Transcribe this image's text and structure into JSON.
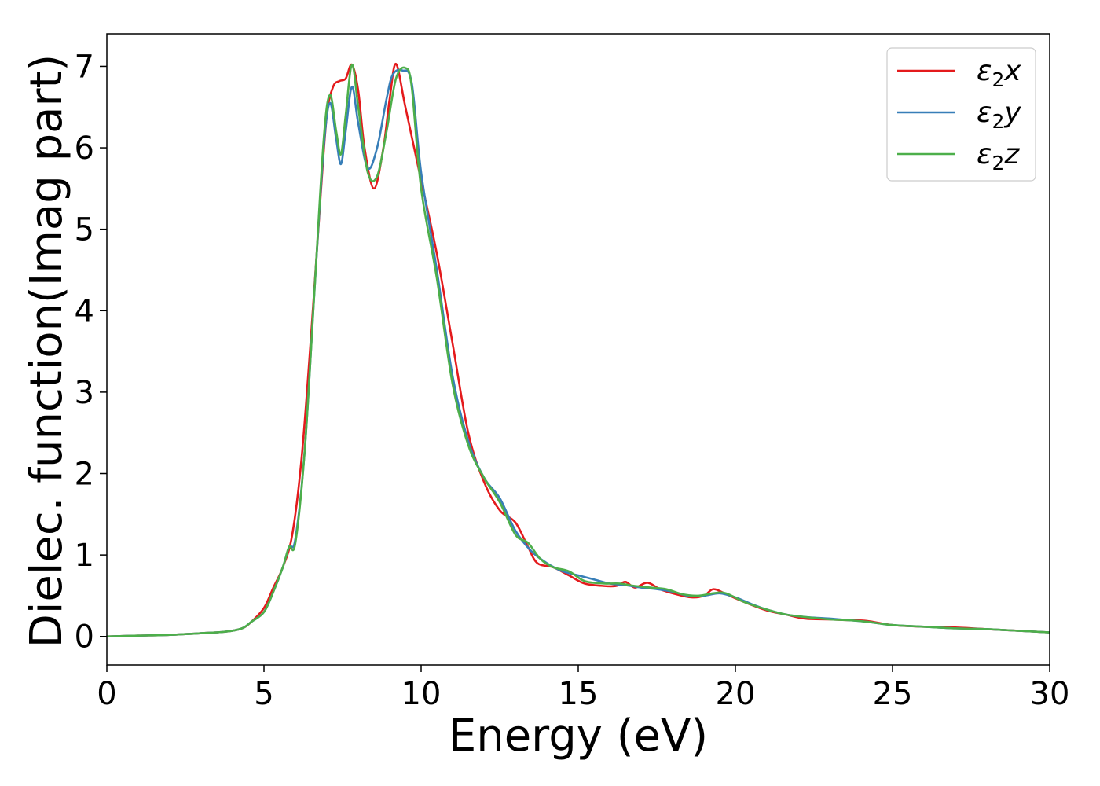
{
  "chart_data": {
    "type": "line",
    "title": "",
    "xlabel": "Energy (eV)",
    "ylabel": "Dielec. function(Imag part)",
    "xlim": [
      0,
      30
    ],
    "ylim": [
      -0.35,
      7.4
    ],
    "xticks": [
      0,
      5,
      10,
      15,
      20,
      25,
      30
    ],
    "yticks": [
      0,
      1,
      2,
      3,
      4,
      5,
      6,
      7
    ],
    "grid": false,
    "legend_position": "top-right",
    "series": [
      {
        "name": "ε2x",
        "legend_main": "ε",
        "legend_sub": "2",
        "legend_suffix": "x",
        "color": "#e41a1c",
        "points": [
          [
            0,
            0
          ],
          [
            1,
            0.01
          ],
          [
            2,
            0.02
          ],
          [
            3,
            0.04
          ],
          [
            3.8,
            0.06
          ],
          [
            4.3,
            0.1
          ],
          [
            4.6,
            0.18
          ],
          [
            5.0,
            0.35
          ],
          [
            5.3,
            0.6
          ],
          [
            5.6,
            0.85
          ],
          [
            5.9,
            1.25
          ],
          [
            6.2,
            2.2
          ],
          [
            6.5,
            3.7
          ],
          [
            6.8,
            5.4
          ],
          [
            7.0,
            6.4
          ],
          [
            7.2,
            6.75
          ],
          [
            7.4,
            6.82
          ],
          [
            7.6,
            6.85
          ],
          [
            7.8,
            7.02
          ],
          [
            8.0,
            6.7
          ],
          [
            8.2,
            6.0
          ],
          [
            8.5,
            5.5
          ],
          [
            8.8,
            6.0
          ],
          [
            9.0,
            6.6
          ],
          [
            9.2,
            7.03
          ],
          [
            9.5,
            6.5
          ],
          [
            10.0,
            5.6
          ],
          [
            10.5,
            4.7
          ],
          [
            11.0,
            3.6
          ],
          [
            11.5,
            2.5
          ],
          [
            12.0,
            1.9
          ],
          [
            12.5,
            1.55
          ],
          [
            13.0,
            1.4
          ],
          [
            13.4,
            1.1
          ],
          [
            13.7,
            0.9
          ],
          [
            14.2,
            0.85
          ],
          [
            14.7,
            0.75
          ],
          [
            15.2,
            0.65
          ],
          [
            15.8,
            0.62
          ],
          [
            16.2,
            0.62
          ],
          [
            16.5,
            0.67
          ],
          [
            16.8,
            0.6
          ],
          [
            17.2,
            0.66
          ],
          [
            17.6,
            0.58
          ],
          [
            18.1,
            0.52
          ],
          [
            18.6,
            0.48
          ],
          [
            19.0,
            0.5
          ],
          [
            19.3,
            0.58
          ],
          [
            19.7,
            0.52
          ],
          [
            20.3,
            0.42
          ],
          [
            21.0,
            0.32
          ],
          [
            21.6,
            0.27
          ],
          [
            22.2,
            0.22
          ],
          [
            23.0,
            0.21
          ],
          [
            23.6,
            0.2
          ],
          [
            24.2,
            0.19
          ],
          [
            25.0,
            0.14
          ],
          [
            26.0,
            0.12
          ],
          [
            27.0,
            0.11
          ],
          [
            28.0,
            0.09
          ],
          [
            29.0,
            0.07
          ],
          [
            30.0,
            0.05
          ]
        ]
      },
      {
        "name": "ε2y",
        "legend_main": "ε",
        "legend_sub": "2",
        "legend_suffix": "y",
        "color": "#377eb8",
        "points": [
          [
            0,
            0
          ],
          [
            1,
            0.01
          ],
          [
            2,
            0.02
          ],
          [
            3,
            0.04
          ],
          [
            3.8,
            0.06
          ],
          [
            4.3,
            0.1
          ],
          [
            4.6,
            0.18
          ],
          [
            5.0,
            0.3
          ],
          [
            5.3,
            0.55
          ],
          [
            5.6,
            0.85
          ],
          [
            5.8,
            1.1
          ],
          [
            6.0,
            1.2
          ],
          [
            6.3,
            2.3
          ],
          [
            6.6,
            4.2
          ],
          [
            6.9,
            6.0
          ],
          [
            7.1,
            6.55
          ],
          [
            7.3,
            6.1
          ],
          [
            7.45,
            5.8
          ],
          [
            7.6,
            6.2
          ],
          [
            7.8,
            6.75
          ],
          [
            8.0,
            6.3
          ],
          [
            8.3,
            5.75
          ],
          [
            8.6,
            6.0
          ],
          [
            8.9,
            6.6
          ],
          [
            9.1,
            6.9
          ],
          [
            9.4,
            6.95
          ],
          [
            9.7,
            6.8
          ],
          [
            10.0,
            5.7
          ],
          [
            10.5,
            4.5
          ],
          [
            11.0,
            3.2
          ],
          [
            11.5,
            2.4
          ],
          [
            12.0,
            1.95
          ],
          [
            12.5,
            1.7
          ],
          [
            13.0,
            1.3
          ],
          [
            13.5,
            1.05
          ],
          [
            14.0,
            0.9
          ],
          [
            14.5,
            0.8
          ],
          [
            15.0,
            0.75
          ],
          [
            15.5,
            0.7
          ],
          [
            16.0,
            0.65
          ],
          [
            16.5,
            0.63
          ],
          [
            17.0,
            0.6
          ],
          [
            17.5,
            0.58
          ],
          [
            18.0,
            0.55
          ],
          [
            18.5,
            0.5
          ],
          [
            19.0,
            0.5
          ],
          [
            19.5,
            0.53
          ],
          [
            20.0,
            0.48
          ],
          [
            20.5,
            0.4
          ],
          [
            21.0,
            0.33
          ],
          [
            21.6,
            0.27
          ],
          [
            22.2,
            0.24
          ],
          [
            23.0,
            0.22
          ],
          [
            23.6,
            0.2
          ],
          [
            24.2,
            0.18
          ],
          [
            25.0,
            0.14
          ],
          [
            26.0,
            0.12
          ],
          [
            27.0,
            0.1
          ],
          [
            28.0,
            0.09
          ],
          [
            29.0,
            0.07
          ],
          [
            30.0,
            0.05
          ]
        ]
      },
      {
        "name": "ε2z",
        "legend_main": "ε",
        "legend_sub": "2",
        "legend_suffix": "z",
        "color": "#4daf4a",
        "points": [
          [
            0,
            0
          ],
          [
            1,
            0.01
          ],
          [
            2,
            0.02
          ],
          [
            3,
            0.04
          ],
          [
            3.8,
            0.06
          ],
          [
            4.3,
            0.1
          ],
          [
            4.6,
            0.18
          ],
          [
            5.0,
            0.3
          ],
          [
            5.3,
            0.55
          ],
          [
            5.6,
            0.85
          ],
          [
            5.8,
            1.1
          ],
          [
            6.0,
            1.15
          ],
          [
            6.3,
            2.3
          ],
          [
            6.6,
            4.2
          ],
          [
            6.9,
            6.1
          ],
          [
            7.1,
            6.65
          ],
          [
            7.3,
            6.2
          ],
          [
            7.45,
            5.92
          ],
          [
            7.6,
            6.4
          ],
          [
            7.8,
            7.02
          ],
          [
            8.0,
            6.5
          ],
          [
            8.3,
            5.7
          ],
          [
            8.6,
            5.65
          ],
          [
            8.9,
            6.2
          ],
          [
            9.2,
            6.85
          ],
          [
            9.5,
            6.98
          ],
          [
            9.7,
            6.75
          ],
          [
            10.0,
            5.5
          ],
          [
            10.5,
            4.4
          ],
          [
            11.0,
            3.1
          ],
          [
            11.5,
            2.35
          ],
          [
            12.0,
            1.95
          ],
          [
            12.5,
            1.65
          ],
          [
            13.0,
            1.25
          ],
          [
            13.4,
            1.15
          ],
          [
            13.8,
            0.95
          ],
          [
            14.2,
            0.85
          ],
          [
            14.7,
            0.8
          ],
          [
            15.2,
            0.68
          ],
          [
            15.8,
            0.65
          ],
          [
            16.3,
            0.65
          ],
          [
            16.8,
            0.62
          ],
          [
            17.3,
            0.6
          ],
          [
            17.8,
            0.58
          ],
          [
            18.3,
            0.52
          ],
          [
            18.8,
            0.5
          ],
          [
            19.3,
            0.53
          ],
          [
            19.7,
            0.53
          ],
          [
            20.3,
            0.42
          ],
          [
            21.0,
            0.33
          ],
          [
            21.6,
            0.27
          ],
          [
            22.2,
            0.24
          ],
          [
            23.0,
            0.21
          ],
          [
            23.6,
            0.2
          ],
          [
            24.2,
            0.18
          ],
          [
            25.0,
            0.14
          ],
          [
            26.0,
            0.12
          ],
          [
            27.0,
            0.1
          ],
          [
            28.0,
            0.09
          ],
          [
            29.0,
            0.07
          ],
          [
            30.0,
            0.05
          ]
        ]
      }
    ]
  }
}
